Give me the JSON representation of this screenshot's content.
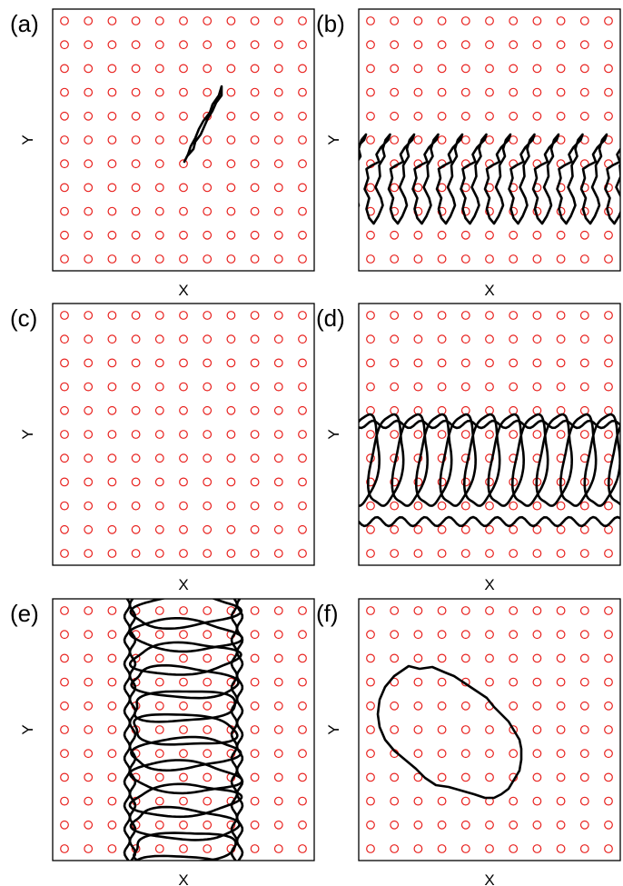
{
  "colors": {
    "site": "#e8201d",
    "curve": "#000000",
    "frame": "#000000"
  },
  "grid": {
    "cols": 11,
    "rows": 11
  },
  "panels": [
    {
      "label": "(a)",
      "xlabel": "X",
      "ylabel": "Y",
      "shape": "thin-needle"
    },
    {
      "label": "(b)",
      "xlabel": "X",
      "ylabel": "Y",
      "shape": "needle-row"
    },
    {
      "label": "(c)",
      "xlabel": "X",
      "ylabel": "Y",
      "shape": "single-blob"
    },
    {
      "label": "(d)",
      "xlabel": "X",
      "ylabel": "Y",
      "shape": "blob-row"
    },
    {
      "label": "(e)",
      "xlabel": "X",
      "ylabel": "Y",
      "shape": "vertical-band"
    },
    {
      "label": "(f)",
      "xlabel": "X",
      "ylabel": "Y",
      "shape": "large-ellipse"
    }
  ]
}
